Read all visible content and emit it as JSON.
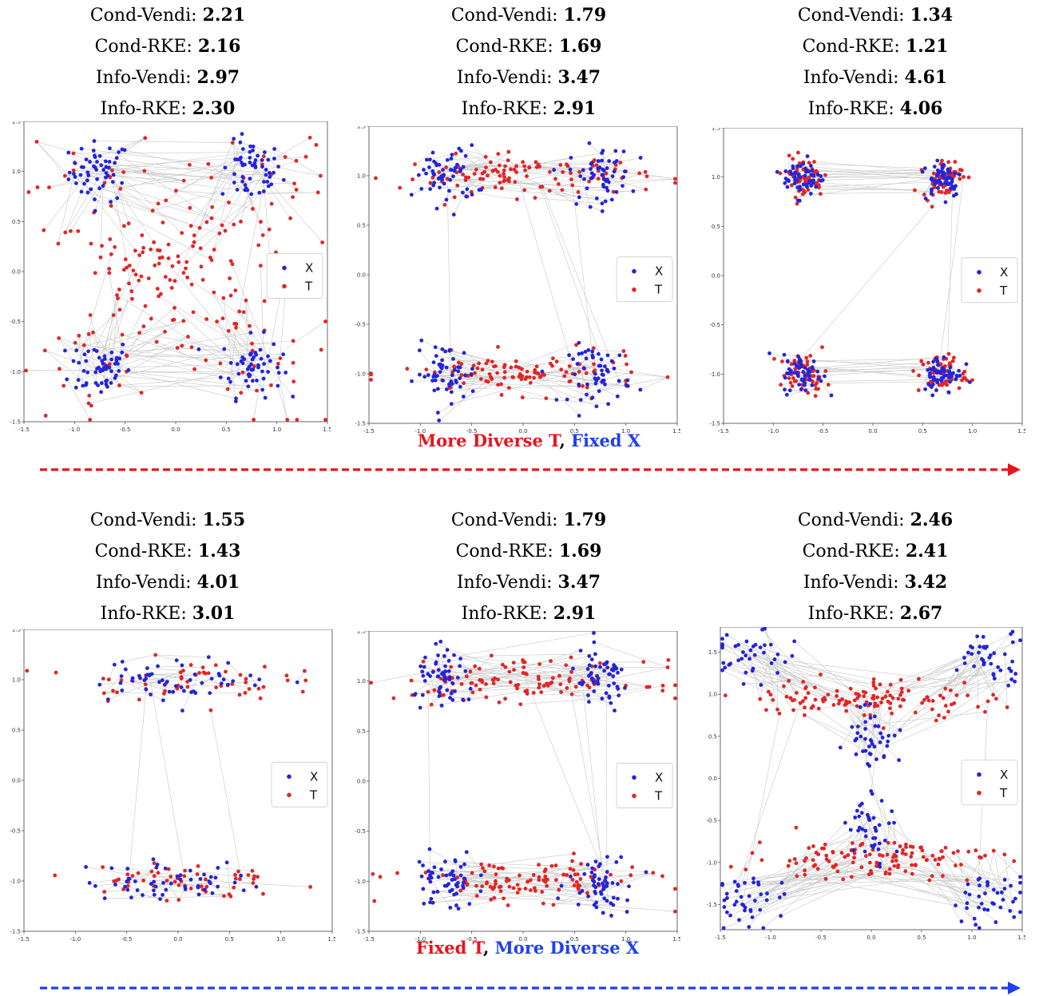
{
  "colors": {
    "x_points": "#2424d8",
    "t_points": "#e02626",
    "links": "#c8c8c8",
    "caption_t": "#e8141c",
    "caption_x": "#1f3ff0",
    "arrow_top": "#e8141c",
    "arrow_bottom": "#1f3ff0"
  },
  "rows": [
    {
      "caption": {
        "part1": "More Diverse T",
        "sep": ",",
        "part2": "Fixed X"
      },
      "panels": [
        {
          "metrics": [
            {
              "label": "Cond-Vendi: ",
              "value": "2.21"
            },
            {
              "label": "Cond-RKE: ",
              "value": "2.16"
            },
            {
              "label": "Info-Vendi: ",
              "value": "2.97"
            },
            {
              "label": "Info-RKE: ",
              "value": "2.30"
            }
          ]
        },
        {
          "metrics": [
            {
              "label": "Cond-Vendi: ",
              "value": "1.79"
            },
            {
              "label": "Cond-RKE: ",
              "value": "1.69"
            },
            {
              "label": "Info-Vendi: ",
              "value": "3.47"
            },
            {
              "label": "Info-RKE: ",
              "value": "2.91"
            }
          ]
        },
        {
          "metrics": [
            {
              "label": "Cond-Vendi: ",
              "value": "1.34"
            },
            {
              "label": "Cond-RKE: ",
              "value": "1.21"
            },
            {
              "label": "Info-Vendi: ",
              "value": "4.61"
            },
            {
              "label": "Info-RKE: ",
              "value": "4.06"
            }
          ]
        }
      ]
    },
    {
      "caption": {
        "part1": "Fixed T",
        "sep": ",",
        "part2": "More Diverse X"
      },
      "panels": [
        {
          "metrics": [
            {
              "label": "Cond-Vendi: ",
              "value": "1.55"
            },
            {
              "label": "Cond-RKE: ",
              "value": "1.43"
            },
            {
              "label": "Info-Vendi: ",
              "value": "4.01"
            },
            {
              "label": "Info-RKE: ",
              "value": "3.01"
            }
          ]
        },
        {
          "metrics": [
            {
              "label": "Cond-Vendi: ",
              "value": "1.79"
            },
            {
              "label": "Cond-RKE: ",
              "value": "1.69"
            },
            {
              "label": "Info-Vendi: ",
              "value": "3.47"
            },
            {
              "label": "Info-RKE: ",
              "value": "2.91"
            }
          ]
        },
        {
          "metrics": [
            {
              "label": "Cond-Vendi: ",
              "value": "2.46"
            },
            {
              "label": "Cond-RKE: ",
              "value": "2.41"
            },
            {
              "label": "Info-Vendi: ",
              "value": "3.42"
            },
            {
              "label": "Info-RKE: ",
              "value": "2.67"
            }
          ]
        }
      ]
    }
  ],
  "chart_data": [
    {
      "type": "scatter",
      "panel": "row1-col1",
      "xlim": [
        -1.5,
        1.5
      ],
      "ylim": [
        -1.5,
        1.5
      ],
      "xticks": [
        "-1.5",
        "-1.0",
        "-0.5",
        "0.0",
        "0.5",
        "1.0",
        "1.5"
      ],
      "yticks": [
        "-1.5",
        "-1.0",
        "-0.5",
        "0.0",
        "0.5",
        "1.0",
        "1.5"
      ],
      "legend": [
        "X",
        "T"
      ],
      "legend_position": "right",
      "series": [
        {
          "name": "X",
          "clusters": [
            {
              "center": [
                -0.75,
                1.0
              ],
              "spread": [
                0.15,
                0.15
              ]
            },
            {
              "center": [
                0.75,
                1.0
              ],
              "spread": [
                0.15,
                0.15
              ]
            },
            {
              "center": [
                -0.75,
                -0.95
              ],
              "spread": [
                0.15,
                0.15
              ]
            },
            {
              "center": [
                0.75,
                -0.95
              ],
              "spread": [
                0.15,
                0.15
              ]
            }
          ]
        },
        {
          "name": "T",
          "distribution": "x-shaped, wide",
          "extent": [
            [
              -1.45,
              1.45
            ],
            [
              -1.45,
              1.45
            ]
          ]
        }
      ]
    },
    {
      "type": "scatter",
      "panel": "row1-col2",
      "xlim": [
        -1.5,
        1.5
      ],
      "ylim": [
        -1.5,
        1.5
      ],
      "xticks": [
        "-1.5",
        "-1.0",
        "-0.5",
        "0.0",
        "0.5",
        "1.0",
        "1.5"
      ],
      "yticks": [
        "-1.5",
        "-1.0",
        "-0.5",
        "0.0",
        "0.5",
        "1.0",
        "1.5"
      ],
      "legend": [
        "X",
        "T"
      ],
      "legend_position": "right",
      "series": [
        {
          "name": "X",
          "clusters": [
            {
              "center": [
                -0.75,
                1.0
              ],
              "spread": [
                0.15,
                0.15
              ]
            },
            {
              "center": [
                0.75,
                1.0
              ],
              "spread": [
                0.15,
                0.15
              ]
            },
            {
              "center": [
                -0.75,
                -1.0
              ],
              "spread": [
                0.15,
                0.15
              ]
            },
            {
              "center": [
                0.75,
                -1.0
              ],
              "spread": [
                0.15,
                0.15
              ]
            }
          ]
        },
        {
          "name": "T",
          "clusters": [
            {
              "center": [
                0.0,
                1.0
              ],
              "spread": [
                0.6,
                0.1
              ]
            },
            {
              "center": [
                0.0,
                -1.0
              ],
              "spread": [
                0.6,
                0.1
              ]
            }
          ]
        }
      ]
    },
    {
      "type": "scatter",
      "panel": "row1-col3",
      "xlim": [
        -1.5,
        1.5
      ],
      "ylim": [
        -1.5,
        1.5
      ],
      "xticks": [
        "-1.5",
        "-1.0",
        "-0.5",
        "0.0",
        "0.5",
        "1.0",
        "1.5"
      ],
      "yticks": [
        "-1.5",
        "-1.0",
        "-0.5",
        "0.0",
        "0.5",
        "1.0",
        "1.5"
      ],
      "legend": [
        "X",
        "T"
      ],
      "legend_position": "right",
      "series": [
        {
          "name": "X",
          "clusters": [
            {
              "center": [
                -0.7,
                1.0
              ],
              "spread": [
                0.1,
                0.1
              ]
            },
            {
              "center": [
                0.7,
                1.0
              ],
              "spread": [
                0.1,
                0.1
              ]
            },
            {
              "center": [
                -0.7,
                -1.0
              ],
              "spread": [
                0.1,
                0.1
              ]
            },
            {
              "center": [
                0.7,
                -1.0
              ],
              "spread": [
                0.1,
                0.1
              ]
            }
          ]
        },
        {
          "name": "T",
          "clusters": [
            {
              "center": [
                -0.7,
                1.0
              ],
              "spread": [
                0.1,
                0.1
              ]
            },
            {
              "center": [
                0.7,
                1.0
              ],
              "spread": [
                0.1,
                0.1
              ]
            },
            {
              "center": [
                -0.7,
                -1.0
              ],
              "spread": [
                0.12,
                0.1
              ]
            },
            {
              "center": [
                0.7,
                -1.0
              ],
              "spread": [
                0.12,
                0.1
              ]
            }
          ]
        }
      ]
    },
    {
      "type": "scatter",
      "panel": "row2-col1",
      "xlim": [
        -1.5,
        1.5
      ],
      "ylim": [
        -1.5,
        1.5
      ],
      "xticks": [
        "-1.5",
        "-1.0",
        "-0.5",
        "0.0",
        "0.5",
        "1.0",
        "1.5"
      ],
      "yticks": [
        "-1.5",
        "-1.0",
        "-0.5",
        "0.0",
        "0.5",
        "1.0",
        "1.5"
      ],
      "legend": [
        "X",
        "T"
      ],
      "legend_position": "right",
      "series": [
        {
          "name": "X",
          "clusters": [
            {
              "center": [
                0.0,
                1.0
              ],
              "spread": [
                0.45,
                0.1
              ]
            },
            {
              "center": [
                0.0,
                -1.0
              ],
              "spread": [
                0.45,
                0.1
              ]
            }
          ]
        },
        {
          "name": "T",
          "clusters": [
            {
              "center": [
                0.0,
                1.0
              ],
              "spread": [
                0.5,
                0.1
              ]
            },
            {
              "center": [
                0.0,
                -1.0
              ],
              "spread": [
                0.5,
                0.1
              ]
            }
          ]
        }
      ]
    },
    {
      "type": "scatter",
      "panel": "row2-col2",
      "xlim": [
        -1.5,
        1.5
      ],
      "ylim": [
        -1.5,
        1.5
      ],
      "xticks": [
        "-1.5",
        "-1.0",
        "-0.5",
        "0.0",
        "0.5",
        "1.0",
        "1.5"
      ],
      "yticks": [
        "-1.5",
        "-1.0",
        "-0.5",
        "0.0",
        "0.5",
        "1.0",
        "1.5"
      ],
      "legend": [
        "X",
        "T"
      ],
      "legend_position": "right",
      "series": [
        {
          "name": "X",
          "clusters": [
            {
              "center": [
                -0.75,
                1.0
              ],
              "spread": [
                0.15,
                0.15
              ]
            },
            {
              "center": [
                0.75,
                1.0
              ],
              "spread": [
                0.15,
                0.15
              ]
            },
            {
              "center": [
                -0.75,
                -1.0
              ],
              "spread": [
                0.15,
                0.15
              ]
            },
            {
              "center": [
                0.75,
                -1.0
              ],
              "spread": [
                0.15,
                0.15
              ]
            }
          ]
        },
        {
          "name": "T",
          "clusters": [
            {
              "center": [
                0.0,
                1.0
              ],
              "spread": [
                0.6,
                0.1
              ]
            },
            {
              "center": [
                0.0,
                -1.0
              ],
              "spread": [
                0.6,
                0.1
              ]
            }
          ]
        }
      ]
    },
    {
      "type": "scatter",
      "panel": "row2-col3",
      "xlim": [
        -1.5,
        1.5
      ],
      "ylim": [
        -1.8,
        1.8
      ],
      "xticks": [
        "-1.5",
        "-1.0",
        "-0.5",
        "0.0",
        "0.5",
        "1.0",
        "1.5"
      ],
      "yticks": [
        "-1.5",
        "-1.0",
        "-0.5",
        "0.0",
        "0.5",
        "1.0",
        "1.5"
      ],
      "legend": [
        "X",
        "T"
      ],
      "legend_position": "right",
      "series": [
        {
          "name": "X",
          "clusters": [
            {
              "center": [
                -1.2,
                1.45
              ],
              "spread": [
                0.2,
                0.15
              ]
            },
            {
              "center": [
                1.2,
                1.45
              ],
              "spread": [
                0.2,
                0.15
              ]
            },
            {
              "center": [
                0.0,
                0.5
              ],
              "spread": [
                0.12,
                0.2
              ]
            },
            {
              "center": [
                -1.2,
                -1.45
              ],
              "spread": [
                0.2,
                0.15
              ]
            },
            {
              "center": [
                1.2,
                -1.45
              ],
              "spread": [
                0.2,
                0.15
              ]
            },
            {
              "center": [
                0.0,
                -0.55
              ],
              "spread": [
                0.12,
                0.2
              ]
            }
          ]
        },
        {
          "name": "T",
          "clusters": [
            {
              "center": [
                0.0,
                0.95
              ],
              "spread": [
                0.6,
                0.12
              ]
            },
            {
              "center": [
                0.0,
                -0.95
              ],
              "spread": [
                0.6,
                0.12
              ]
            }
          ]
        }
      ]
    }
  ]
}
